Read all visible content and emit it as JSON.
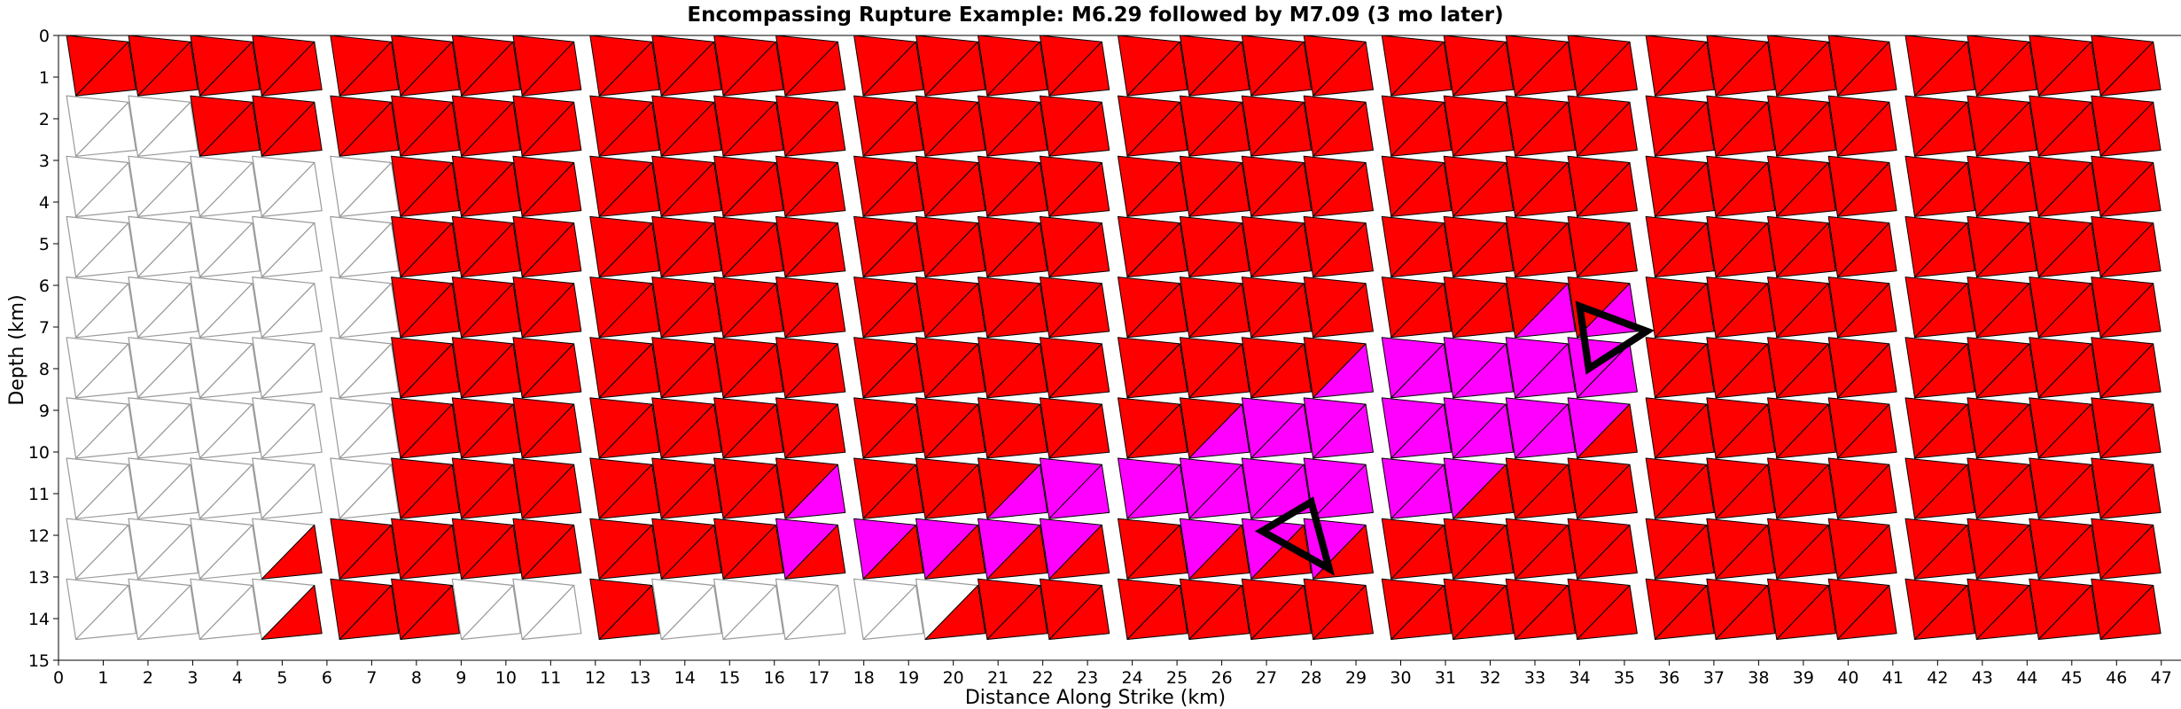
{
  "chart_data": {
    "type": "heatmap",
    "title": "Encompassing Rupture Example: M6.29 followed by M7.09 (3 mo later)",
    "xlabel": "Distance Along Strike (km)",
    "ylabel": "Depth (km)",
    "xlim": [
      0,
      47.5
    ],
    "ylim": [
      15,
      0
    ],
    "x_ticks": [
      "0",
      "1",
      "2",
      "3",
      "4",
      "5",
      "6",
      "7",
      "8",
      "9",
      "10",
      "11",
      "12",
      "13",
      "14",
      "15",
      "16",
      "17",
      "18",
      "19",
      "20",
      "21",
      "22",
      "23",
      "24",
      "25",
      "26",
      "27",
      "28",
      "29",
      "30",
      "31",
      "32",
      "33",
      "34",
      "35",
      "36",
      "37",
      "38",
      "39",
      "40",
      "41",
      "42",
      "43",
      "44",
      "45",
      "46",
      "47"
    ],
    "y_ticks": [
      "0",
      "1",
      "2",
      "3",
      "4",
      "5",
      "6",
      "7",
      "8",
      "9",
      "10",
      "11",
      "12",
      "13",
      "14",
      "15"
    ],
    "grid": false,
    "fault_sections_x_km": [
      0,
      5.9,
      11.7,
      17.6,
      23.5,
      29.4,
      35.3,
      41.1,
      47.0
    ],
    "rupture_depth_km": 14.5,
    "colors": {
      "M7.09_rupture": "#ff0000",
      "M6.29_rupture": "#ff00ff",
      "unruptured": "#ffffff",
      "element_edge": "#000000",
      "unruptured_edge": "#9a9a9a",
      "highlight_edge": "#000000"
    },
    "unruptured_regions": [
      {
        "x_km": [
          0,
          3.2
        ],
        "depth_km": [
          1.0,
          14.5
        ]
      },
      {
        "x_km": [
          3.2,
          4.6
        ],
        "depth_km": [
          2.6,
          14.5
        ]
      },
      {
        "x_km": [
          4.6,
          7.8
        ],
        "depth_km": [
          3.2,
          11.2
        ]
      },
      {
        "x_km": [
          4.2,
          5.0
        ],
        "depth_km": [
          11.2,
          14.5
        ]
      },
      {
        "x_km": [
          8.8,
          11.7
        ],
        "depth_km": [
          13.0,
          14.5
        ]
      },
      {
        "x_km": [
          13.2,
          17.6
        ],
        "depth_km": [
          13.0,
          14.5
        ]
      },
      {
        "x_km": [
          17.6,
          20.0
        ],
        "depth_km": [
          13.2,
          14.5
        ]
      }
    ],
    "M6.29_rupture_region": [
      [
        16.2,
        11.0
      ],
      [
        17.7,
        11.2
      ],
      [
        19.0,
        12.0
      ],
      [
        21.5,
        10.6
      ],
      [
        23.3,
        10.6
      ],
      [
        26.5,
        9.0
      ],
      [
        29.4,
        7.5
      ],
      [
        35.0,
        6.2
      ],
      [
        35.5,
        8.8
      ],
      [
        29.4,
        12.0
      ],
      [
        26.5,
        12.4
      ],
      [
        23.5,
        12.0
      ],
      [
        22.0,
        12.4
      ],
      [
        19.5,
        12.3
      ],
      [
        17.6,
        12.6
      ],
      [
        16.2,
        12.0
      ]
    ],
    "highlighted_elements": [
      {
        "vertices": [
          [
            34.0,
            6.5
          ],
          [
            35.5,
            7.1
          ],
          [
            34.2,
            8.0
          ]
        ]
      },
      {
        "vertices": [
          [
            26.9,
            11.9
          ],
          [
            28.0,
            11.2
          ],
          [
            28.4,
            12.8
          ]
        ]
      }
    ]
  }
}
